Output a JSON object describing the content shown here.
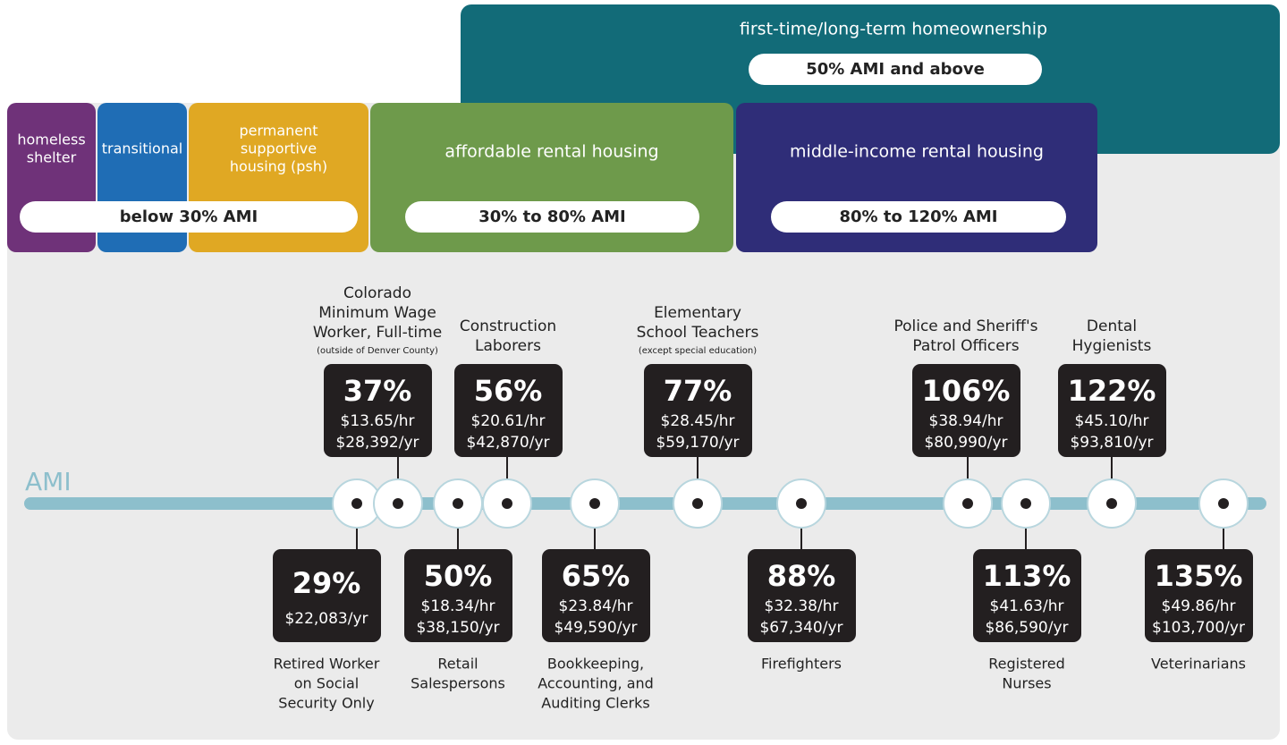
{
  "top": {
    "title": "first-time/long-term homeownership",
    "range": "50% AMI and above"
  },
  "tiers": [
    {
      "label": [
        "homeless",
        "shelter"
      ]
    },
    {
      "label": [
        "transitional"
      ]
    },
    {
      "label": [
        "permanent",
        "supportive",
        "housing (psh)"
      ]
    },
    {
      "label": [
        "affordable rental housing"
      ]
    },
    {
      "label": [
        "middle-income rental housing"
      ]
    }
  ],
  "ranges": [
    "below 30% AMI",
    "30% to 80% AMI",
    "80% to 120% AMI"
  ],
  "axis_label": "AMI",
  "items": [
    {
      "percent": "29%",
      "lines": [
        "$22,083/yr"
      ],
      "label": [
        "Retired Worker",
        "on Social",
        "Security Only"
      ]
    },
    {
      "percent": "37%",
      "lines": [
        "$13.65/hr",
        "$28,392/yr"
      ],
      "label": [
        "Colorado",
        "Minimum Wage",
        "Worker, Full-time"
      ],
      "note": "(outside of Denver County)"
    },
    {
      "percent": "50%",
      "lines": [
        "$18.34/hr",
        "$38,150/yr"
      ],
      "label": [
        "Retail",
        "Salespersons"
      ]
    },
    {
      "percent": "56%",
      "lines": [
        "$20.61/hr",
        "$42,870/yr"
      ],
      "label": [
        "Construction",
        "Laborers"
      ]
    },
    {
      "percent": "65%",
      "lines": [
        "$23.84/hr",
        "$49,590/yr"
      ],
      "label": [
        "Bookkeeping,",
        "Accounting, and",
        "Auditing Clerks"
      ]
    },
    {
      "percent": "77%",
      "lines": [
        "$28.45/hr",
        "$59,170/yr"
      ],
      "label": [
        "Elementary",
        "School Teachers"
      ],
      "note": "(except special education)"
    },
    {
      "percent": "88%",
      "lines": [
        "$32.38/hr",
        "$67,340/yr"
      ],
      "label": [
        "Firefighters"
      ]
    },
    {
      "percent": "106%",
      "lines": [
        "$38.94/hr",
        "$80,990/yr"
      ],
      "label": [
        "Police and Sheriff's",
        "Patrol Officers"
      ]
    },
    {
      "percent": "113%",
      "lines": [
        "$41.63/hr",
        "$86,590/yr"
      ],
      "label": [
        "Registered",
        "Nurses"
      ]
    },
    {
      "percent": "122%",
      "lines": [
        "$45.10/hr",
        "$93,810/yr"
      ],
      "label": [
        "Dental",
        "Hygienists"
      ]
    },
    {
      "percent": "135%",
      "lines": [
        "$49.86/hr",
        "$103,700/yr"
      ],
      "label": [
        "Veterinarians"
      ]
    }
  ]
}
